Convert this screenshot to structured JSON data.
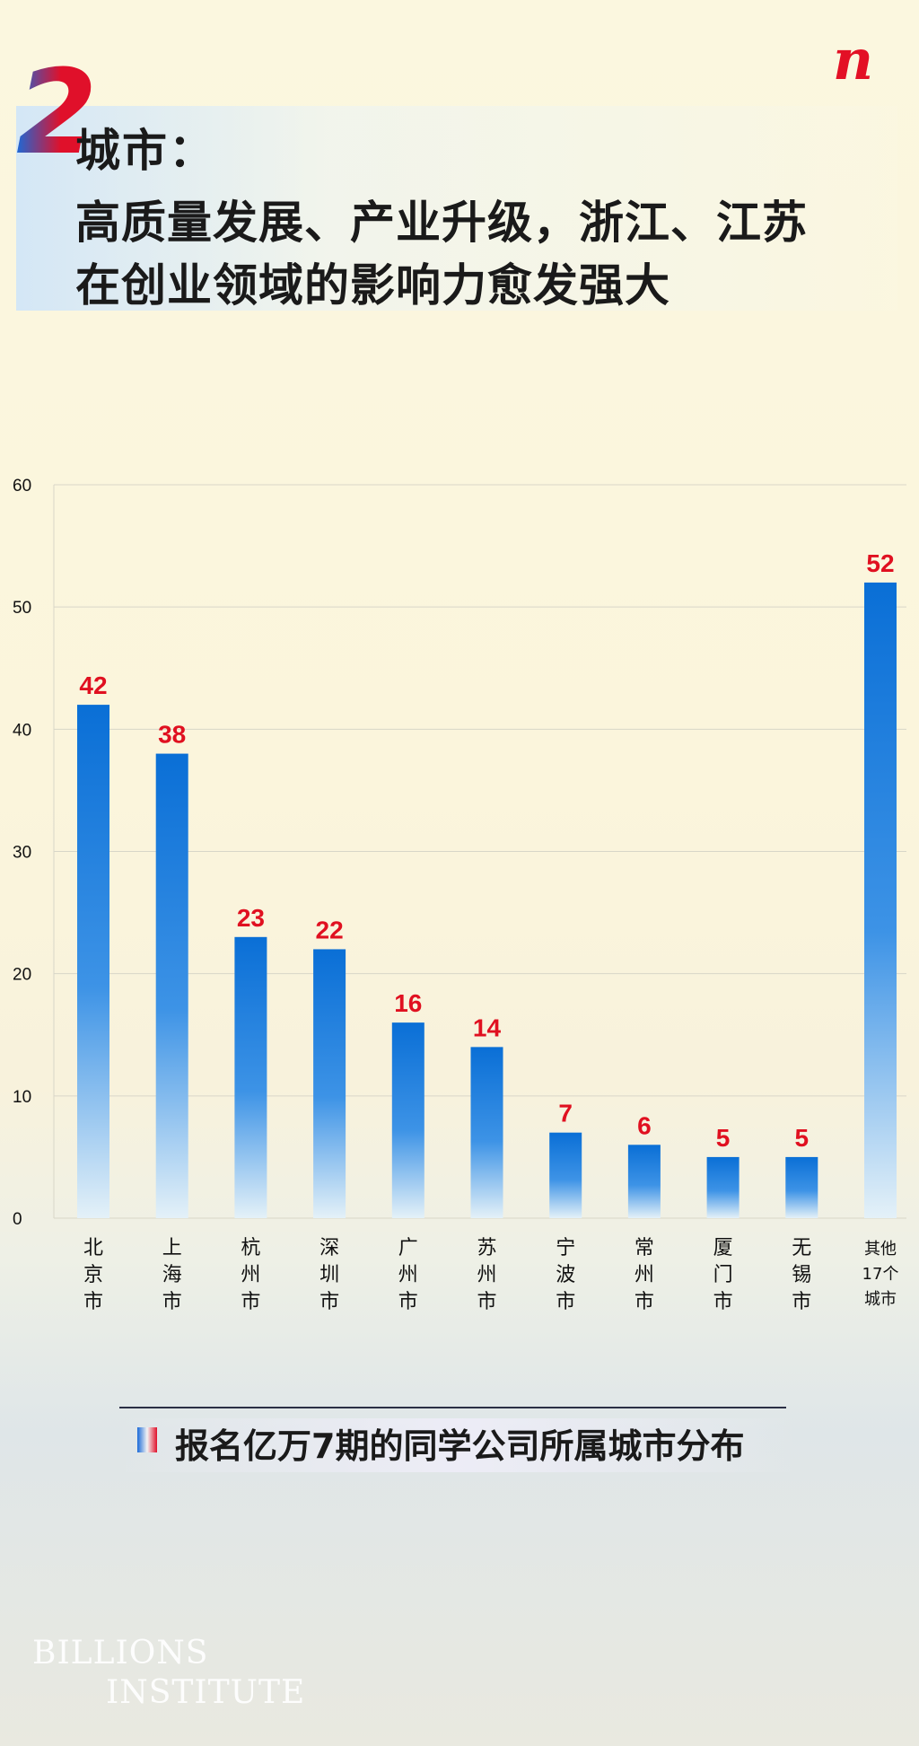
{
  "header": {
    "section_number": "2",
    "title_line1": "城市：",
    "title_line2": "高质量发展、产业升级，浙江、江苏",
    "title_line3": "在创业领域的影响力愈发强大",
    "logo_letter": "n"
  },
  "chart_data": {
    "type": "bar",
    "categories": [
      "北京市",
      "上海市",
      "杭州市",
      "深圳市",
      "广州市",
      "苏州市",
      "宁波市",
      "常州市",
      "厦门市",
      "无锡市",
      "其他17个城市"
    ],
    "category_label_lines": [
      [
        "北",
        "京",
        "市"
      ],
      [
        "上",
        "海",
        "市"
      ],
      [
        "杭",
        "州",
        "市"
      ],
      [
        "深",
        "圳",
        "市"
      ],
      [
        "广",
        "州",
        "市"
      ],
      [
        "苏",
        "州",
        "市"
      ],
      [
        "宁",
        "波",
        "市"
      ],
      [
        "常",
        "州",
        "市"
      ],
      [
        "厦",
        "门",
        "市"
      ],
      [
        "无",
        "锡",
        "市"
      ],
      [
        "其他",
        "17个",
        "城市"
      ]
    ],
    "values": [
      42,
      38,
      23,
      22,
      16,
      14,
      7,
      6,
      5,
      5,
      52
    ],
    "ylim": [
      0,
      60
    ],
    "yticks": [
      0,
      10,
      20,
      30,
      40,
      50,
      60
    ],
    "title": "报名亿万7期的同学公司所属城市分布",
    "grid": true,
    "colors": {
      "bar_top": "#0a6fd6",
      "bar_mid": "#3d93e6",
      "bar_bottom": "#e4f1f8",
      "value_label": "#e01020",
      "axis_text": "#111111",
      "grid": "#d8d6c8"
    }
  },
  "footer": {
    "caption": "报名亿万7期的同学公司所属城市分布",
    "brand_line1": "BILLIONS",
    "brand_line2": "INSTITUTE"
  }
}
